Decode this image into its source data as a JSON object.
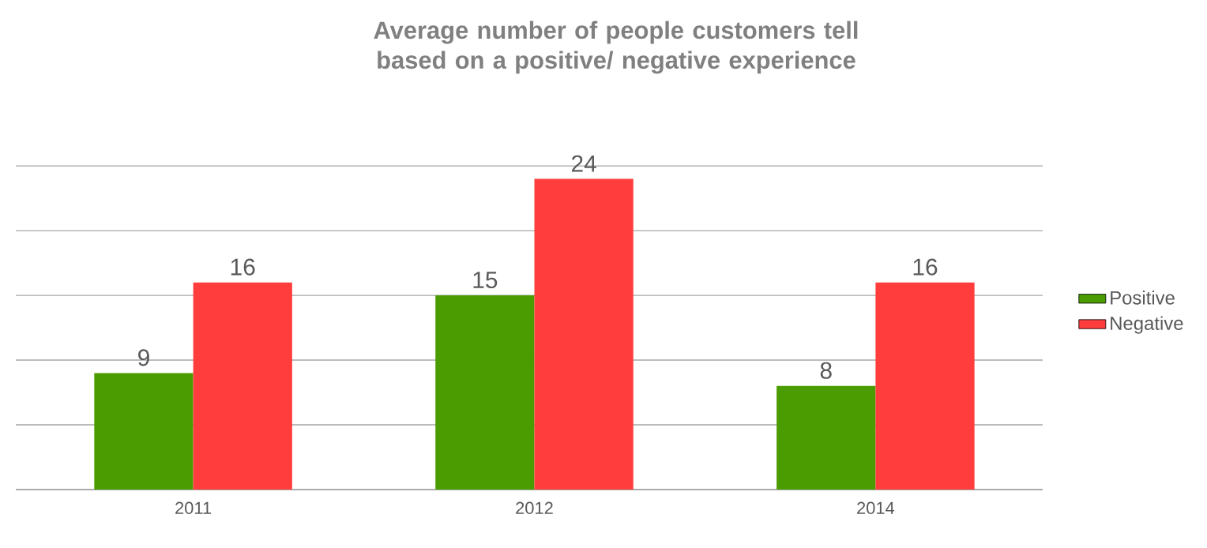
{
  "chart_data": {
    "type": "bar",
    "title": "Average number of people customers tell based on a positive/ negative experience",
    "categories": [
      "2011",
      "2012",
      "2014"
    ],
    "series": [
      {
        "name": "Positive",
        "color": "#4a9c00",
        "values": [
          9,
          15,
          8
        ]
      },
      {
        "name": "Negative",
        "color": "#ff3d3d",
        "values": [
          16,
          24,
          16
        ]
      }
    ],
    "tick_labels": "x",
    "grid": "y",
    "legend": "right",
    "data_labels": true
  }
}
